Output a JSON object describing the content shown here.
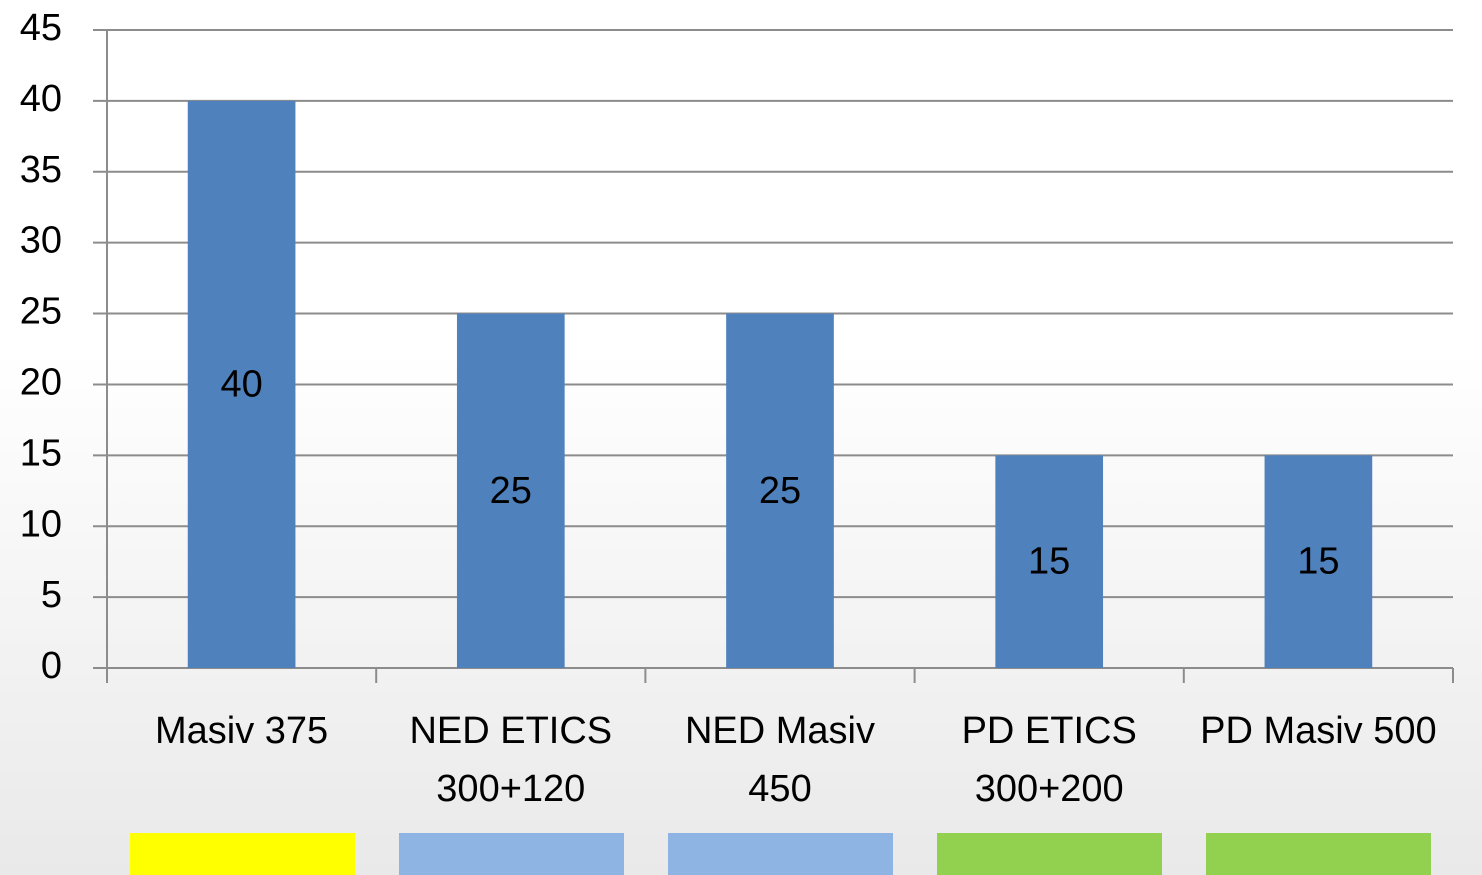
{
  "chart_data": {
    "type": "bar",
    "categories": [
      "Masiv 375",
      "NED ETICS 300+120",
      "NED Masiv 450",
      "PD ETICS 300+200",
      "PD Masiv 500"
    ],
    "values": [
      40,
      25,
      25,
      15,
      15
    ],
    "color": "#4f81bd",
    "category_colors": [
      "#ffff00",
      "#8eb4e3",
      "#8eb4e3",
      "#92d050",
      "#92d050"
    ],
    "ylim": [
      0,
      45
    ],
    "yticks": [
      0,
      5,
      10,
      15,
      20,
      25,
      30,
      35,
      40,
      45
    ],
    "grid": true
  }
}
